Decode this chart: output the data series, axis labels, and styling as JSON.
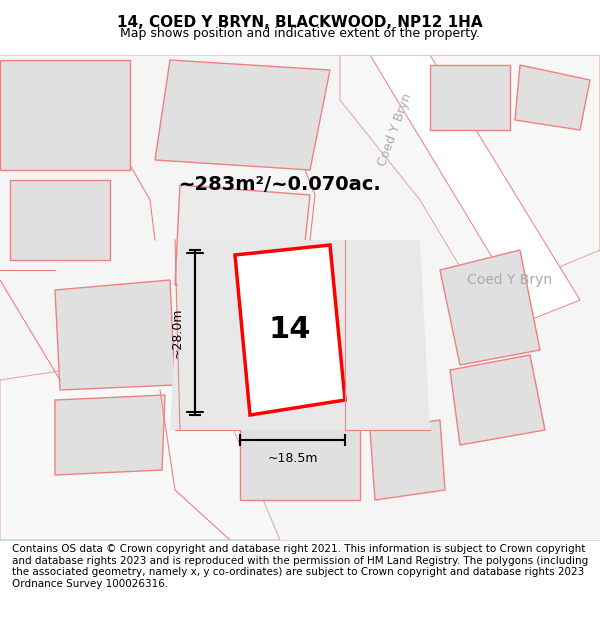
{
  "title": "14, COED Y BRYN, BLACKWOOD, NP12 1HA",
  "subtitle": "Map shows position and indicative extent of the property.",
  "area_text": "~283m²/~0.070ac.",
  "plot_number": "14",
  "dim_width": "~18.5m",
  "dim_height": "~28.0m",
  "street_label_diagonal": "Coed Y Bryn",
  "street_label_top": "Coed Y Bryn",
  "footer": "Contains OS data © Crown copyright and database right 2021. This information is subject to Crown copyright and database rights 2023 and is reproduced with the permission of HM Land Registry. The polygons (including the associated geometry, namely x, y co-ordinates) are subject to Crown copyright and database rights 2023 Ordnance Survey 100026316.",
  "bg_color": "#f5f5f5",
  "map_bg": "#f0f0f0",
  "building_color": "#e0e0e0",
  "road_color": "#ffffff",
  "plot_fill": "#ffffff",
  "plot_edge": "#ff0000",
  "other_building_edge": "#f08080",
  "title_fontsize": 11,
  "subtitle_fontsize": 9,
  "footer_fontsize": 7.5
}
